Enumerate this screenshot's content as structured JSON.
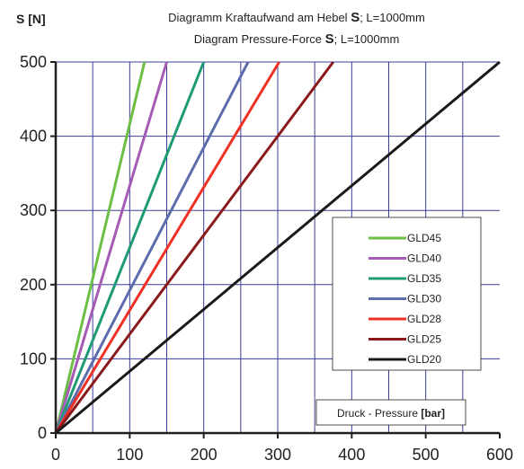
{
  "chart_data": {
    "type": "line",
    "title_line1_prefix": "Diagramm Kraftaufwand am Hebel ",
    "title_line2_prefix": "Diagram Pressure-Force ",
    "title_symbol": "S",
    "title_suffix": "; L=1000mm",
    "ylabel": "S [N]",
    "xlabel_text": "Druck - Pressure ",
    "xlabel_unit": "[bar]",
    "xlim": [
      0,
      600
    ],
    "ylim": [
      0,
      500
    ],
    "x_ticks": [
      "0",
      "100",
      "200",
      "300",
      "400",
      "500",
      "600"
    ],
    "y_ticks": [
      "0",
      "100",
      "200",
      "300",
      "400",
      "500"
    ],
    "grid": true,
    "grid_color": "#3b3f98",
    "legend_position": "right",
    "series": [
      {
        "name": "GLD45",
        "color": "#6cbe45",
        "x": [
          0,
          120
        ],
        "y": [
          0,
          500
        ]
      },
      {
        "name": "GLD40",
        "color": "#a55bb6",
        "x": [
          0,
          150
        ],
        "y": [
          0,
          500
        ]
      },
      {
        "name": "GLD35",
        "color": "#1e9b74",
        "x": [
          0,
          200
        ],
        "y": [
          0,
          500
        ]
      },
      {
        "name": "GLD30",
        "color": "#5c6cad",
        "x": [
          0,
          260
        ],
        "y": [
          0,
          500
        ]
      },
      {
        "name": "GLD28",
        "color": "#ee3124",
        "x": [
          0,
          302
        ],
        "y": [
          0,
          500
        ]
      },
      {
        "name": "GLD25",
        "color": "#8b1a1c",
        "x": [
          0,
          375
        ],
        "y": [
          0,
          500
        ]
      },
      {
        "name": "GLD20",
        "color": "#1a1a1a",
        "x": [
          0,
          600
        ],
        "y": [
          0,
          500
        ]
      }
    ]
  }
}
